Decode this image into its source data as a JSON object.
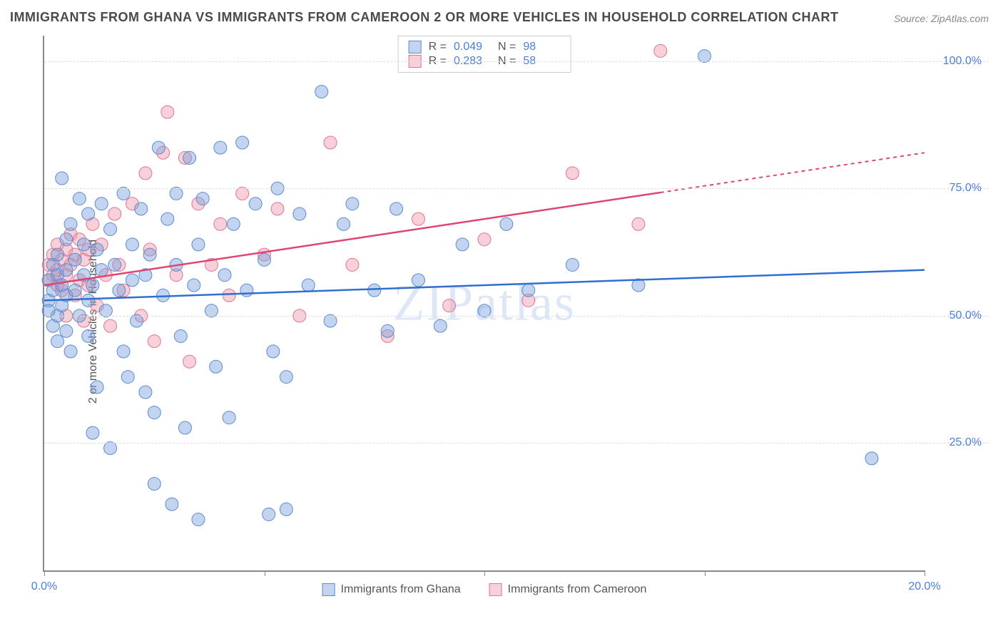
{
  "title": "IMMIGRANTS FROM GHANA VS IMMIGRANTS FROM CAMEROON 2 OR MORE VEHICLES IN HOUSEHOLD CORRELATION CHART",
  "source": "Source: ZipAtlas.com",
  "watermark": "ZIPatlas",
  "chart": {
    "type": "scatter",
    "ylabel": "2 or more Vehicles in Household",
    "xlim": [
      0,
      20
    ],
    "ylim": [
      0,
      105
    ],
    "xticks": [
      0,
      5,
      10,
      15,
      20
    ],
    "xtick_labels": [
      "0.0%",
      "",
      "",
      "",
      "20.0%"
    ],
    "yticks": [
      25,
      50,
      75,
      100
    ],
    "ytick_labels": [
      "25.0%",
      "50.0%",
      "75.0%",
      "100.0%"
    ],
    "grid_color": "#dddddd",
    "background_color": "#ffffff",
    "axis_color": "#888888",
    "label_fontsize": 16,
    "value_color": "#4a7fd8",
    "series": [
      {
        "name": "Immigrants from Ghana",
        "fill": "rgba(120,160,220,0.45)",
        "stroke": "#5a8cd0",
        "line_color": "#2f6fd0",
        "marker_radius": 9,
        "r": 0.049,
        "n": 98,
        "trend": {
          "x1": 0,
          "y1": 53,
          "x2": 20,
          "y2": 59,
          "dash_from_x": 20
        },
        "points": [
          [
            0.1,
            53
          ],
          [
            0.1,
            57
          ],
          [
            0.2,
            55
          ],
          [
            0.2,
            60
          ],
          [
            0.2,
            48
          ],
          [
            0.3,
            62
          ],
          [
            0.3,
            58
          ],
          [
            0.3,
            50
          ],
          [
            0.3,
            45
          ],
          [
            0.4,
            77
          ],
          [
            0.4,
            56
          ],
          [
            0.4,
            52
          ],
          [
            0.5,
            65
          ],
          [
            0.5,
            59
          ],
          [
            0.5,
            54
          ],
          [
            0.5,
            47
          ],
          [
            0.6,
            43
          ],
          [
            0.6,
            68
          ],
          [
            0.7,
            61
          ],
          [
            0.7,
            55
          ],
          [
            0.8,
            73
          ],
          [
            0.8,
            50
          ],
          [
            0.9,
            58
          ],
          [
            0.9,
            64
          ],
          [
            1.0,
            53
          ],
          [
            1.0,
            46
          ],
          [
            1.0,
            70
          ],
          [
            1.1,
            27
          ],
          [
            1.1,
            56
          ],
          [
            1.2,
            63
          ],
          [
            1.2,
            36
          ],
          [
            1.3,
            59
          ],
          [
            1.3,
            72
          ],
          [
            1.4,
            51
          ],
          [
            1.5,
            67
          ],
          [
            1.5,
            24
          ],
          [
            1.6,
            60
          ],
          [
            1.7,
            55
          ],
          [
            1.8,
            43
          ],
          [
            1.8,
            74
          ],
          [
            1.9,
            38
          ],
          [
            2.0,
            57
          ],
          [
            2.0,
            64
          ],
          [
            2.1,
            49
          ],
          [
            2.2,
            71
          ],
          [
            2.3,
            35
          ],
          [
            2.3,
            58
          ],
          [
            2.4,
            62
          ],
          [
            2.5,
            31
          ],
          [
            2.5,
            17
          ],
          [
            2.6,
            83
          ],
          [
            2.7,
            54
          ],
          [
            2.8,
            69
          ],
          [
            2.9,
            13
          ],
          [
            3.0,
            60
          ],
          [
            3.0,
            74
          ],
          [
            3.1,
            46
          ],
          [
            3.2,
            28
          ],
          [
            3.3,
            81
          ],
          [
            3.4,
            56
          ],
          [
            3.5,
            10
          ],
          [
            3.5,
            64
          ],
          [
            3.6,
            73
          ],
          [
            3.8,
            51
          ],
          [
            3.9,
            40
          ],
          [
            4.0,
            83
          ],
          [
            4.1,
            58
          ],
          [
            4.2,
            30
          ],
          [
            4.3,
            68
          ],
          [
            4.5,
            84
          ],
          [
            4.6,
            55
          ],
          [
            4.8,
            72
          ],
          [
            5.0,
            61
          ],
          [
            5.1,
            11
          ],
          [
            5.2,
            43
          ],
          [
            5.3,
            75
          ],
          [
            5.5,
            38
          ],
          [
            5.5,
            12
          ],
          [
            5.8,
            70
          ],
          [
            6.0,
            56
          ],
          [
            6.3,
            94
          ],
          [
            6.5,
            49
          ],
          [
            6.8,
            68
          ],
          [
            7.0,
            72
          ],
          [
            7.5,
            55
          ],
          [
            7.8,
            47
          ],
          [
            8.0,
            71
          ],
          [
            8.5,
            57
          ],
          [
            9.0,
            48
          ],
          [
            9.5,
            64
          ],
          [
            10.0,
            51
          ],
          [
            10.5,
            68
          ],
          [
            11.0,
            55
          ],
          [
            12.0,
            60
          ],
          [
            13.5,
            56
          ],
          [
            15.0,
            101
          ],
          [
            18.8,
            22
          ],
          [
            0.1,
            51
          ]
        ]
      },
      {
        "name": "Immigrants from Cameroon",
        "fill": "rgba(240,150,170,0.45)",
        "stroke": "#e07590",
        "line_color": "#e04570",
        "marker_radius": 9,
        "r": 0.283,
        "n": 58,
        "trend": {
          "x1": 0,
          "y1": 56,
          "x2": 20,
          "y2": 82,
          "dash_from_x": 14
        },
        "points": [
          [
            0.1,
            57
          ],
          [
            0.1,
            60
          ],
          [
            0.2,
            58
          ],
          [
            0.2,
            62
          ],
          [
            0.3,
            56
          ],
          [
            0.3,
            64
          ],
          [
            0.3,
            59
          ],
          [
            0.4,
            61
          ],
          [
            0.4,
            55
          ],
          [
            0.5,
            63
          ],
          [
            0.5,
            58
          ],
          [
            0.5,
            50
          ],
          [
            0.6,
            66
          ],
          [
            0.6,
            60
          ],
          [
            0.7,
            54
          ],
          [
            0.7,
            62
          ],
          [
            0.8,
            57
          ],
          [
            0.8,
            65
          ],
          [
            0.9,
            49
          ],
          [
            0.9,
            61
          ],
          [
            1.0,
            63
          ],
          [
            1.0,
            56
          ],
          [
            1.1,
            68
          ],
          [
            1.2,
            52
          ],
          [
            1.3,
            64
          ],
          [
            1.4,
            58
          ],
          [
            1.5,
            48
          ],
          [
            1.6,
            70
          ],
          [
            1.7,
            60
          ],
          [
            1.8,
            55
          ],
          [
            2.0,
            72
          ],
          [
            2.2,
            50
          ],
          [
            2.3,
            78
          ],
          [
            2.4,
            63
          ],
          [
            2.5,
            45
          ],
          [
            2.7,
            82
          ],
          [
            2.8,
            90
          ],
          [
            3.0,
            58
          ],
          [
            3.2,
            81
          ],
          [
            3.3,
            41
          ],
          [
            3.5,
            72
          ],
          [
            3.8,
            60
          ],
          [
            4.0,
            68
          ],
          [
            4.2,
            54
          ],
          [
            4.5,
            74
          ],
          [
            5.0,
            62
          ],
          [
            5.3,
            71
          ],
          [
            5.8,
            50
          ],
          [
            6.5,
            84
          ],
          [
            7.0,
            60
          ],
          [
            7.8,
            46
          ],
          [
            8.5,
            69
          ],
          [
            9.2,
            52
          ],
          [
            10.0,
            65
          ],
          [
            11.0,
            53
          ],
          [
            12.0,
            78
          ],
          [
            13.5,
            68
          ],
          [
            14.0,
            102
          ]
        ]
      }
    ],
    "legend_labels": [
      "Immigrants from Ghana",
      "Immigrants from Cameroon"
    ]
  }
}
